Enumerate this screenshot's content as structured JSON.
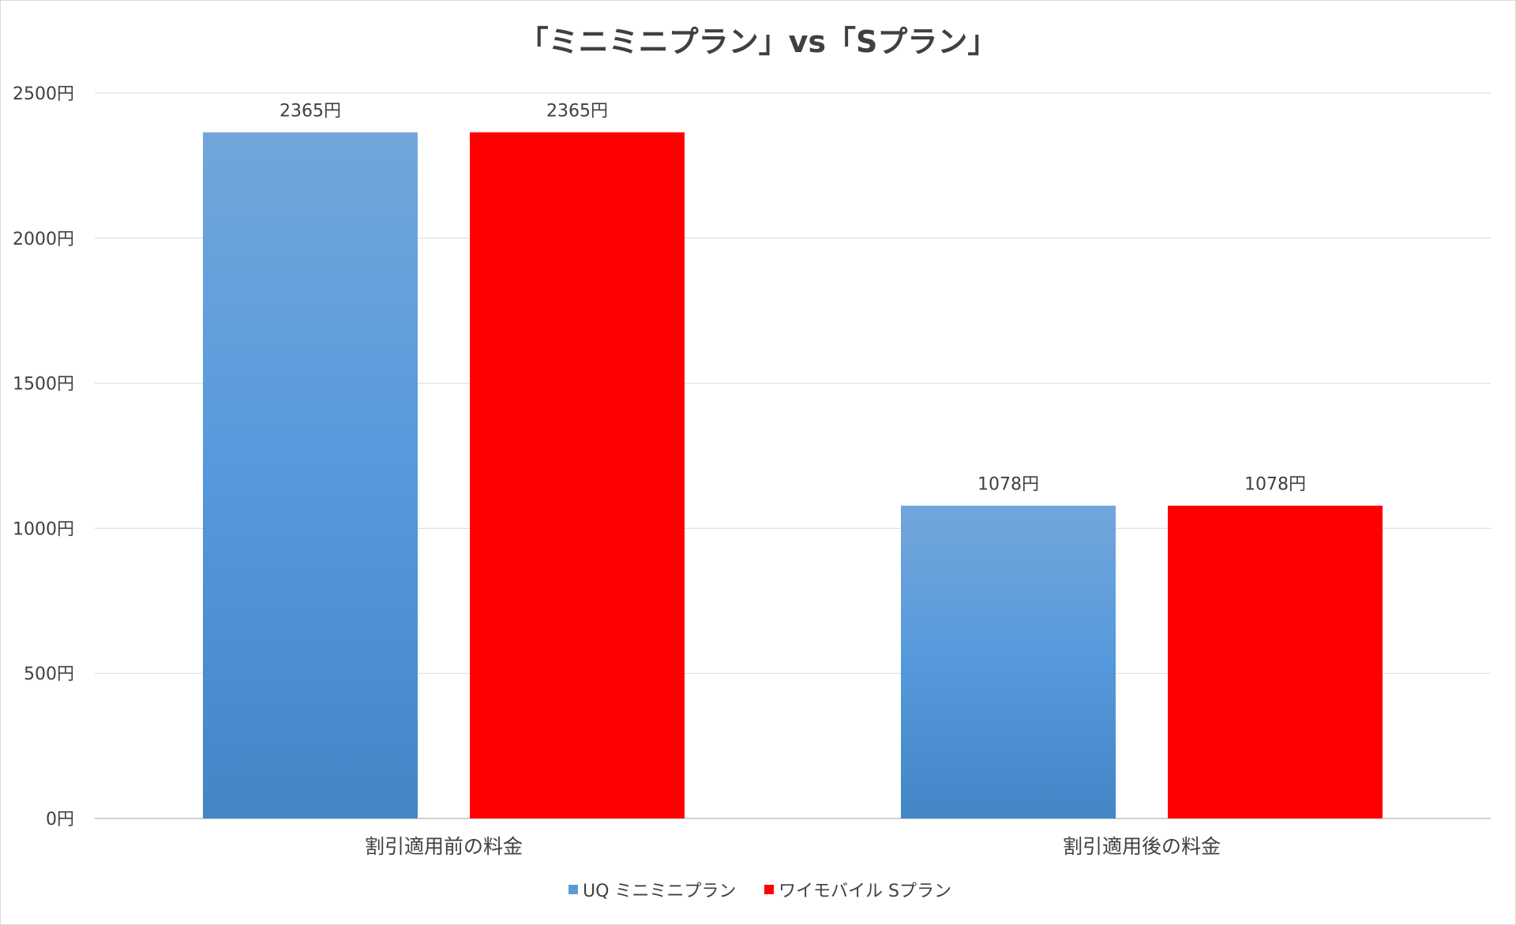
{
  "chart_data": {
    "type": "bar",
    "title": "「ミニミニプラン」vs「Sプラン」",
    "categories": [
      "割引適用前の料金",
      "割引適用後の料金"
    ],
    "series": [
      {
        "name": "UQ ミニミニプラン",
        "values": [
          2365,
          1078
        ],
        "labels": [
          "2365円",
          "1078円"
        ],
        "color": "#5b9bd5"
      },
      {
        "name": "ワイモバイル Sプラン",
        "values": [
          2365,
          1078
        ],
        "labels": [
          "2365円",
          "1078円"
        ],
        "color": "#ff0000"
      }
    ],
    "ylim": [
      0,
      2500
    ],
    "yticks": [
      0,
      500,
      1000,
      1500,
      2000,
      2500
    ],
    "ytick_labels": [
      "0円",
      "500円",
      "1000円",
      "1500円",
      "2000円",
      "2500円"
    ],
    "grid": true,
    "legend_position": "bottom"
  }
}
